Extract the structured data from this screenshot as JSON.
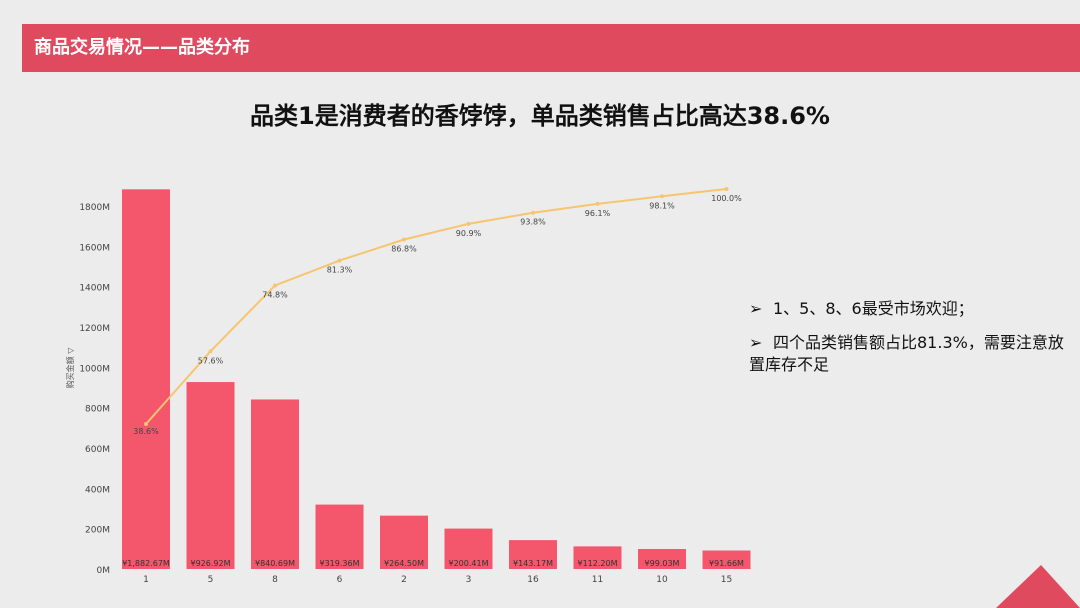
{
  "header": {
    "title": "商品交易情况——品类分布",
    "color": "#e04a5f"
  },
  "headline": "品类1是消费者的香饽饽，单品类销售占比高达38.6%",
  "bullets": [
    {
      "marker": "➢",
      "text": "1、5、8、6最受市场欢迎；"
    },
    {
      "marker": "➢",
      "text": "四个品类销售额占比81.3%，需要注意放置库存不足"
    }
  ],
  "chart_data": {
    "type": "bar",
    "ylabel": "购买金额 ▽",
    "ylim": [
      0,
      1800
    ],
    "yticks": [
      0,
      200,
      400,
      600,
      800,
      1000,
      1200,
      1400,
      1600,
      1800
    ],
    "ytick_labels": [
      "0M",
      "200M",
      "400M",
      "600M",
      "800M",
      "1000M",
      "1200M",
      "1400M",
      "1600M",
      "1800M"
    ],
    "categories": [
      "1",
      "5",
      "8",
      "6",
      "2",
      "3",
      "16",
      "11",
      "10",
      "15"
    ],
    "values": [
      1882.67,
      926.92,
      840.69,
      319.36,
      264.5,
      200.41,
      143.17,
      112.2,
      99.03,
      91.66
    ],
    "bar_labels": [
      "¥1,882.67M",
      "¥926.92M",
      "¥840.69M",
      "¥319.36M",
      "¥264.50M",
      "¥200.41M",
      "¥143.17M",
      "¥112.20M",
      "¥99.03M",
      "¥91.66M"
    ],
    "cumulative_pct": [
      38.6,
      57.6,
      74.8,
      81.3,
      86.8,
      90.9,
      93.8,
      96.1,
      98.1,
      100.0
    ],
    "cumulative_labels": [
      "38.6%",
      "57.6%",
      "74.8%",
      "81.3%",
      "86.8%",
      "90.9%",
      "93.8%",
      "96.1%",
      "98.1%",
      "100.0%"
    ],
    "bar_color": "#f4566b",
    "line_color": "#f6c56e",
    "grid": false
  }
}
